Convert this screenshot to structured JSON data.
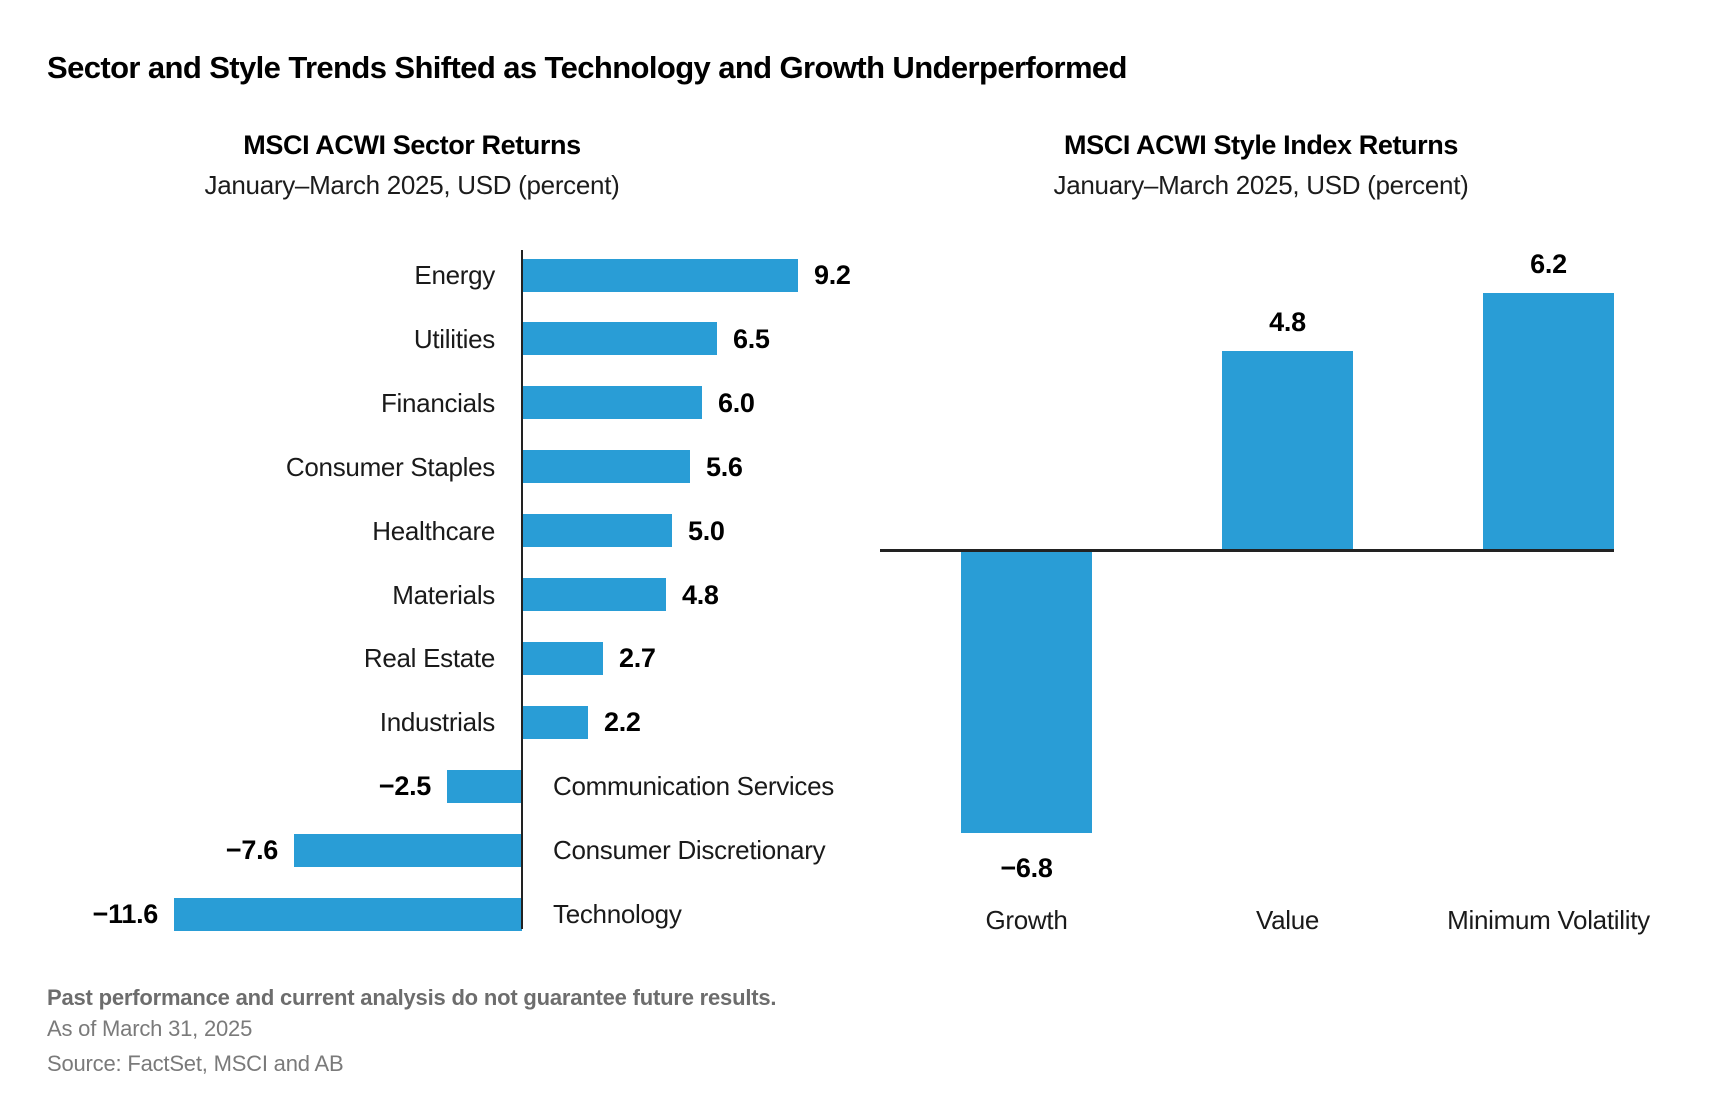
{
  "page_title": "Sector and Style Trends Shifted as Technology and Growth Underperformed",
  "footer": {
    "disclaimer": "Past performance and current analysis do not guarantee future results.",
    "as_of": "As of March 31, 2025",
    "source": "Source: FactSet, MSCI and AB"
  },
  "colors": {
    "bar": "#299DD6",
    "axis": "#222222"
  },
  "chart_data": [
    {
      "type": "bar",
      "orientation": "horizontal",
      "title": "MSCI ACWI Sector Returns",
      "subtitle": "January–March 2025, USD (percent)",
      "categories": [
        "Energy",
        "Utilities",
        "Financials",
        "Consumer Staples",
        "Healthcare",
        "Materials",
        "Real Estate",
        "Industrials",
        "Communication Services",
        "Consumer Discretionary",
        "Technology"
      ],
      "values": [
        9.2,
        6.5,
        6.0,
        5.6,
        5.0,
        4.8,
        2.7,
        2.2,
        -2.5,
        -7.6,
        -11.6
      ],
      "value_labels": [
        "9.2",
        "6.5",
        "6.0",
        "5.6",
        "5.0",
        "4.8",
        "2.7",
        "2.2",
        "−2.5",
        "−7.6",
        "−11.6"
      ],
      "xlim": [
        -11.6,
        9.2
      ],
      "grid": false,
      "legend": "none"
    },
    {
      "type": "bar",
      "orientation": "vertical",
      "title": "MSCI ACWI Style Index Returns",
      "subtitle": "January–March 2025, USD (percent)",
      "categories": [
        "Growth",
        "Value",
        "Minimum Volatility"
      ],
      "values": [
        -6.8,
        4.8,
        6.2
      ],
      "value_labels": [
        "−6.8",
        "4.8",
        "6.2"
      ],
      "ylim": [
        -6.8,
        6.2
      ],
      "grid": false,
      "legend": "none"
    }
  ]
}
